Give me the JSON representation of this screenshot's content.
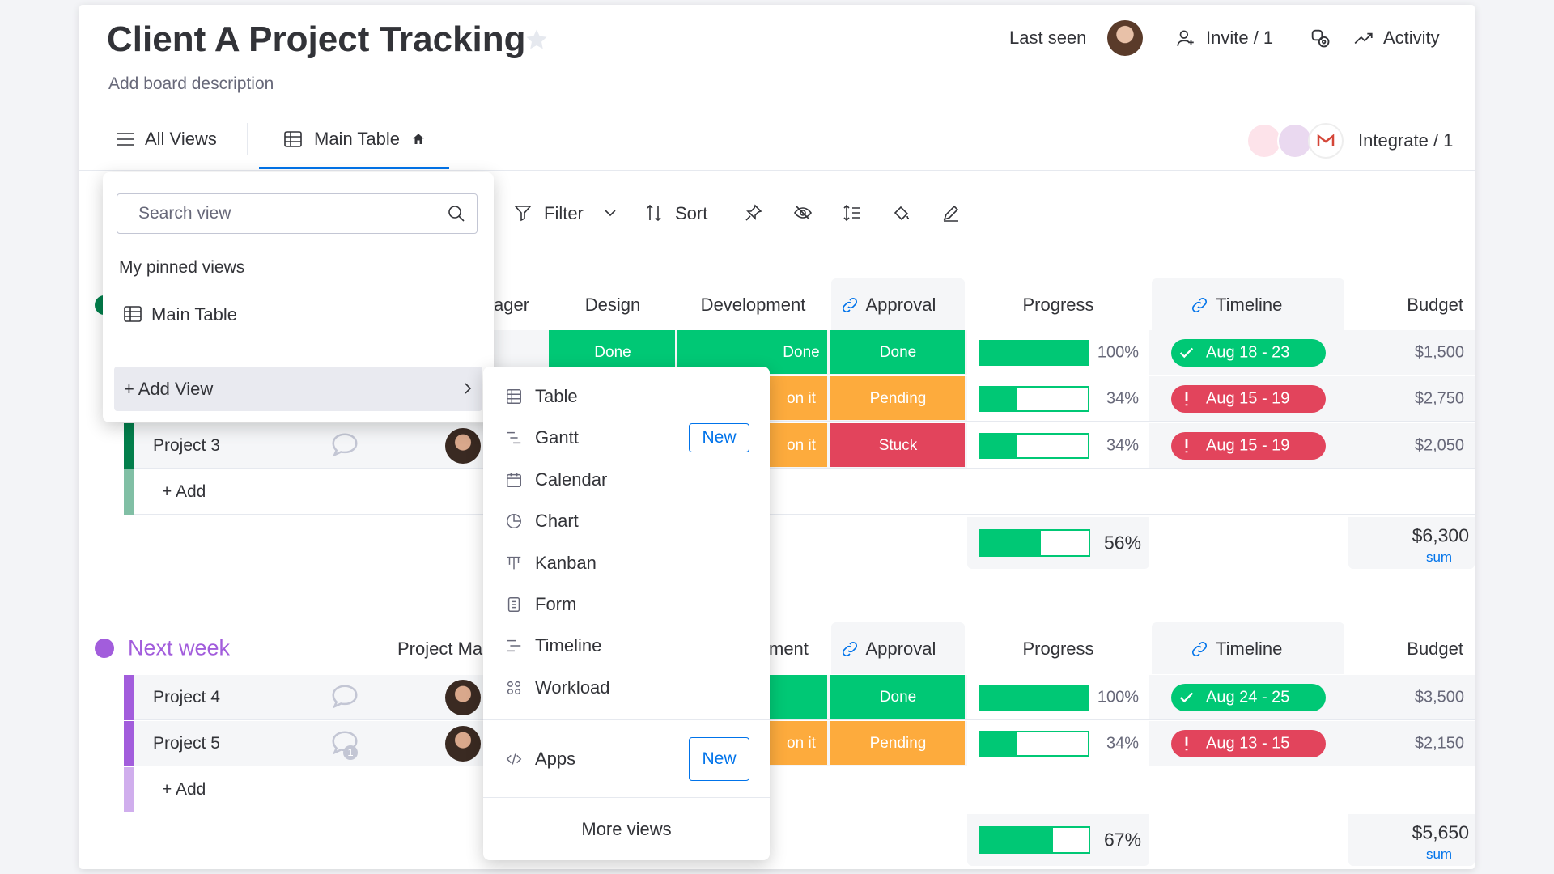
{
  "header": {
    "title": "Client A Project Tracking",
    "description": "Add board description",
    "last_seen": "Last seen",
    "invite": "Invite / 1",
    "activity": "Activity",
    "integrate": "Integrate / 1"
  },
  "tabs": [
    "All Views",
    "Main Table"
  ],
  "toolbar": [
    "Filter",
    "Sort"
  ],
  "views_menu": {
    "search_placeholder": "Search view",
    "pinned_heading": "My pinned views",
    "pinned": [
      "Main Table"
    ],
    "add_view": "+ Add View"
  },
  "add_view_menu": {
    "items": [
      {
        "label": "Table"
      },
      {
        "label": "Gantt",
        "badge": "New"
      },
      {
        "label": "Calendar"
      },
      {
        "label": "Chart"
      },
      {
        "label": "Kanban"
      },
      {
        "label": "Form"
      },
      {
        "label": "Timeline"
      },
      {
        "label": "Workload"
      }
    ],
    "apps": {
      "label": "Apps",
      "badge": "New"
    },
    "more": "More views"
  },
  "groups": [
    {
      "color": "#037f4c",
      "columns": {
        "person": "ager",
        "design": "Design",
        "development": "Development",
        "approval": "Approval",
        "progress": "Progress",
        "timeline": "Timeline",
        "budget": "Budget"
      },
      "rows": [
        {
          "design": {
            "text": "Done",
            "color": "#00c875"
          },
          "development": {
            "text": "Done",
            "color": "#00c875"
          },
          "approval": {
            "text": "Done",
            "color": "#00c875"
          },
          "progress": 100,
          "progress_label": "100%",
          "timeline": {
            "text": "Aug 18 - 23",
            "color": "#00c875"
          },
          "budget": "$1,500"
        },
        {
          "development": {
            "text": "on it",
            "color": "#fdab3d"
          },
          "approval": {
            "text": "Pending",
            "color": "#fdab3d"
          },
          "progress": 34,
          "progress_label": "34%",
          "timeline": {
            "text": "Aug 15 - 19",
            "color": "#e2445c"
          },
          "budget": "$2,750"
        },
        {
          "name": "Project 3",
          "development": {
            "text": "on it",
            "color": "#fdab3d"
          },
          "approval": {
            "text": "Stuck",
            "color": "#e2445c"
          },
          "progress": 34,
          "progress_label": "34%",
          "timeline": {
            "text": "Aug 15 - 19",
            "color": "#e2445c"
          },
          "budget": "$2,050"
        }
      ],
      "add": "+ Add",
      "summary": {
        "progress": 56,
        "progress_label": "56%",
        "budget": "$6,300",
        "budget_note": "sum"
      }
    },
    {
      "title": "Next week",
      "color": "#a25ddc",
      "columns": {
        "person": "Project Ma",
        "development": "ment",
        "approval": "Approval",
        "progress": "Progress",
        "timeline": "Timeline",
        "budget": "Budget"
      },
      "rows": [
        {
          "name": "Project 4",
          "development": {
            "color": "#00c875"
          },
          "approval": {
            "text": "Done",
            "color": "#00c875"
          },
          "progress": 100,
          "progress_label": "100%",
          "timeline": {
            "text": "Aug 24 - 25",
            "color": "#00c875"
          },
          "budget": "$3,500"
        },
        {
          "name": "Project 5",
          "comment_count": "1",
          "development": {
            "text": "on it",
            "color": "#fdab3d"
          },
          "approval": {
            "text": "Pending",
            "color": "#fdab3d"
          },
          "progress": 34,
          "progress_label": "34%",
          "timeline": {
            "text": "Aug 13 - 15",
            "color": "#e2445c"
          },
          "budget": "$2,150"
        }
      ],
      "add": "+ Add",
      "summary": {
        "progress": 67,
        "progress_label": "67%",
        "budget": "$5,650",
        "budget_note": "sum"
      }
    }
  ]
}
